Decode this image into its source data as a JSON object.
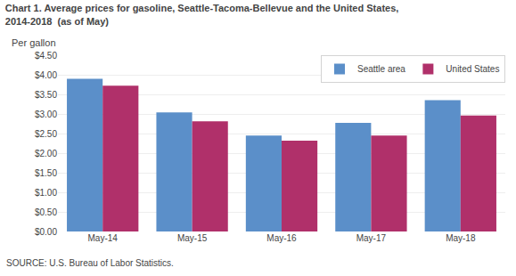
{
  "chart_data": {
    "type": "bar",
    "title": "Chart 1. Average prices for gasoline, Seattle-Tacoma-Bellevue and the United States,",
    "subtitle": "2014-2018  (as of May)",
    "ylabel": "Per gallon",
    "annotations": [
      "SOURCE: U.S. Bureau of Labor Statistics."
    ],
    "categories": [
      "May-14",
      "May-15",
      "May-16",
      "May-17",
      "May-18"
    ],
    "series": [
      {
        "name": "Seattle area",
        "color": "#5b8fc9",
        "values": [
          3.9,
          3.04,
          2.45,
          2.77,
          3.35
        ]
      },
      {
        "name": "United States",
        "color": "#b0306a",
        "values": [
          3.72,
          2.81,
          2.32,
          2.45,
          2.96
        ]
      }
    ],
    "ylim": [
      0,
      4.5
    ],
    "yticks": [
      {
        "value": 0.0,
        "label": "$0.00"
      },
      {
        "value": 0.5,
        "label": "$0.50"
      },
      {
        "value": 1.0,
        "label": "$1.00"
      },
      {
        "value": 1.5,
        "label": "$1.50"
      },
      {
        "value": 2.0,
        "label": "$2.00"
      },
      {
        "value": 2.5,
        "label": "$2.50"
      },
      {
        "value": 3.0,
        "label": "$3.00"
      },
      {
        "value": 3.5,
        "label": "$3.50"
      },
      {
        "value": 4.0,
        "label": "$4.00"
      },
      {
        "value": 4.5,
        "label": "$4.50"
      }
    ],
    "grid": true,
    "legend": "upper right"
  }
}
